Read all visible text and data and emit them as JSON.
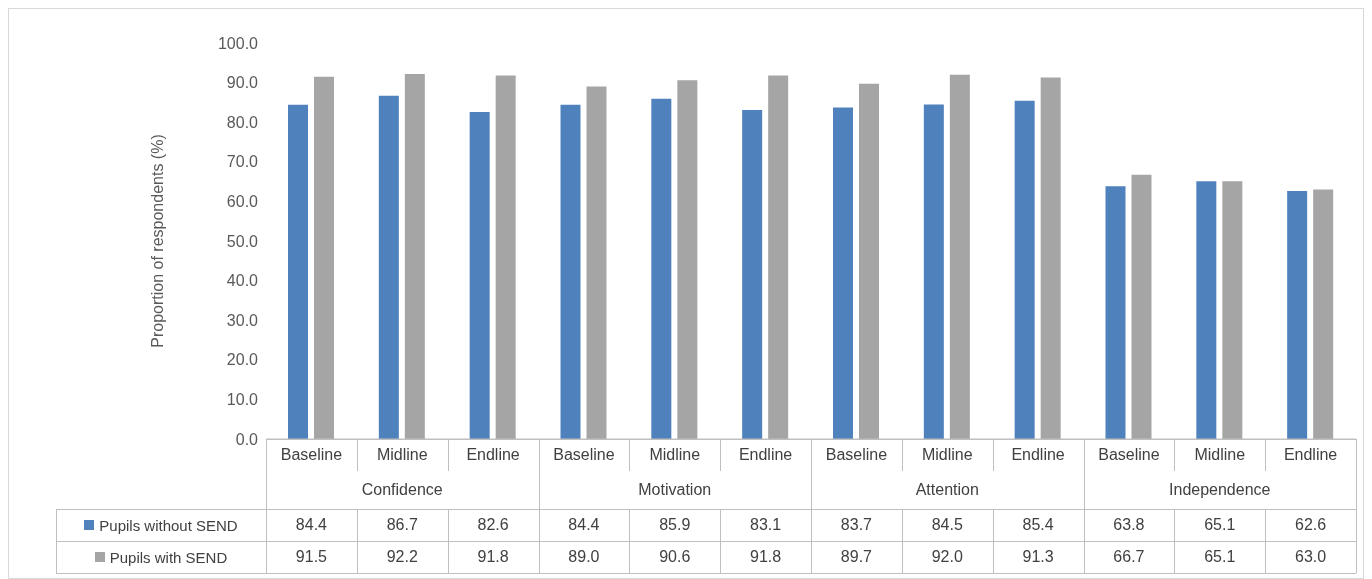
{
  "chart_data": {
    "type": "bar",
    "ylabel": "Proportion of respondents (%)",
    "categories": [
      "Baseline",
      "Midline",
      "Endline",
      "Baseline",
      "Midline",
      "Endline",
      "Baseline",
      "Midline",
      "Endline",
      "Baseline",
      "Midline",
      "Endline"
    ],
    "annotations": [
      "Confidence",
      "Motivation",
      "Attention",
      "Independence"
    ],
    "series": [
      {
        "name": "Pupils without SEND",
        "color": "#4f81bd",
        "values": [
          84.4,
          86.7,
          82.6,
          84.4,
          85.9,
          83.1,
          83.7,
          84.5,
          85.4,
          63.8,
          65.1,
          62.6
        ],
        "value_labels": [
          "84.4",
          "86.7",
          "82.6",
          "84.4",
          "85.9",
          "83.1",
          "83.7",
          "84.5",
          "85.4",
          "63.8",
          "65.1",
          "62.6"
        ]
      },
      {
        "name": "Pupils with SEND",
        "color": "#a5a5a5",
        "values": [
          91.5,
          92.2,
          91.8,
          89.0,
          90.6,
          91.8,
          89.7,
          92.0,
          91.3,
          66.7,
          65.1,
          63.0
        ],
        "value_labels": [
          "91.5",
          "92.2",
          "91.8",
          "89.0",
          "90.6",
          "91.8",
          "89.7",
          "92.0",
          "91.3",
          "66.7",
          "65.1",
          "63.0"
        ]
      }
    ],
    "ylim": [
      0,
      100
    ],
    "yticks": [
      {
        "value": 0,
        "label": "0.0"
      },
      {
        "value": 10,
        "label": "10.0"
      },
      {
        "value": 20,
        "label": "20.0"
      },
      {
        "value": 30,
        "label": "30.0"
      },
      {
        "value": 40,
        "label": "40.0"
      },
      {
        "value": 50,
        "label": "50.0"
      },
      {
        "value": 60,
        "label": "60.0"
      },
      {
        "value": 70,
        "label": "70.0"
      },
      {
        "value": 80,
        "label": "80.0"
      },
      {
        "value": 90,
        "label": "90.0"
      },
      {
        "value": 100,
        "label": "100.0"
      }
    ],
    "legend": "bottom"
  }
}
